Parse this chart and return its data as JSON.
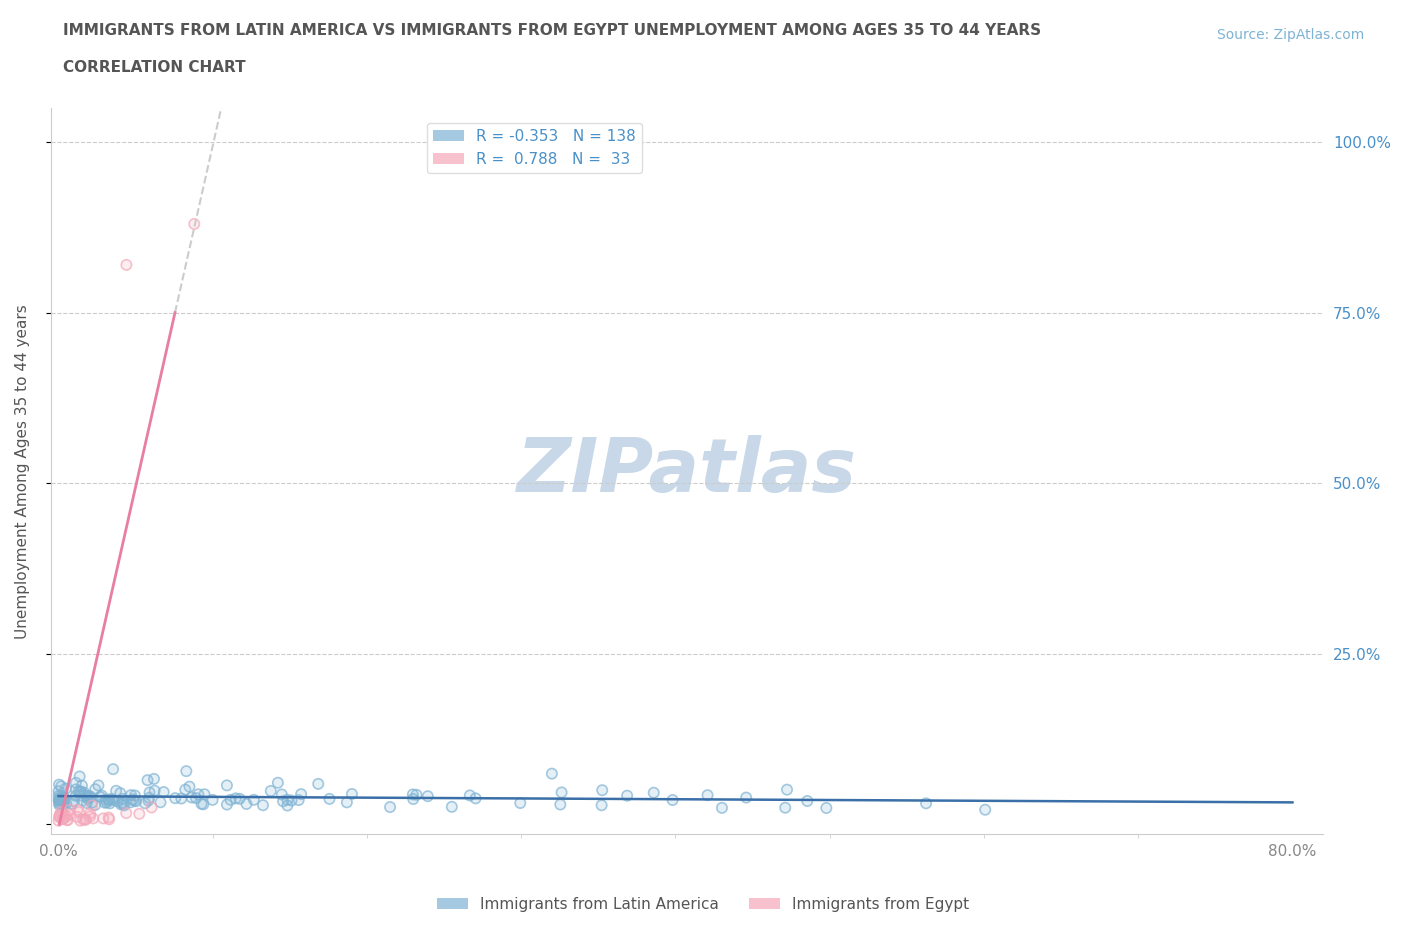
{
  "title_line1": "IMMIGRANTS FROM LATIN AMERICA VS IMMIGRANTS FROM EGYPT UNEMPLOYMENT AMONG AGES 35 TO 44 YEARS",
  "title_line2": "CORRELATION CHART",
  "source": "Source: ZipAtlas.com",
  "ylabel": "Unemployment Among Ages 35 to 44 years",
  "xlim": [
    -0.005,
    0.82
  ],
  "ylim": [
    -0.015,
    1.05
  ],
  "grid_color": "#cccccc",
  "background_color": "#ffffff",
  "watermark": "ZIPatlas",
  "watermark_color": "#c8d8e8",
  "latin_america_color": "#7fb3d3",
  "egypt_color": "#f4a7b9",
  "latin_america_line_color": "#3a6fa8",
  "egypt_line_color": "#e87fa0",
  "trend_line_color": "#cccccc",
  "R_latin": -0.353,
  "N_latin": 138,
  "R_egypt": 0.788,
  "N_egypt": 33,
  "legend_label_latin": "Immigrants from Latin America",
  "legend_label_egypt": "Immigrants from Egypt",
  "title_color": "#555555",
  "source_color": "#7fb3d3",
  "axis_label_color": "#555555",
  "tick_label_color_right": "#4a90c8",
  "tick_label_color_left": "#888888"
}
